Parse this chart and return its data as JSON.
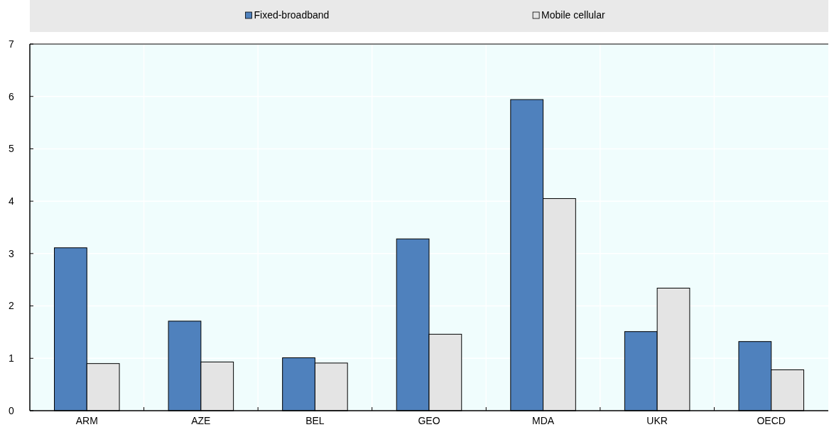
{
  "chart_data": {
    "type": "bar",
    "categories": [
      "ARM",
      "AZE",
      "BEL",
      "GEO",
      "MDA",
      "UKR",
      "OECD"
    ],
    "series": [
      {
        "name": "Fixed-broadband",
        "color": "#4f81bd",
        "values": [
          3.11,
          1.71,
          1.01,
          3.28,
          5.94,
          1.51,
          1.32
        ]
      },
      {
        "name": "Mobile cellular",
        "color": "#e4e4e4",
        "values": [
          0.9,
          0.93,
          0.91,
          1.46,
          4.05,
          2.34,
          0.78
        ]
      }
    ],
    "ylim": [
      0,
      7
    ],
    "yticks": [
      0,
      1,
      2,
      3,
      4,
      5,
      6,
      7
    ],
    "grid": true,
    "legend": "top"
  }
}
